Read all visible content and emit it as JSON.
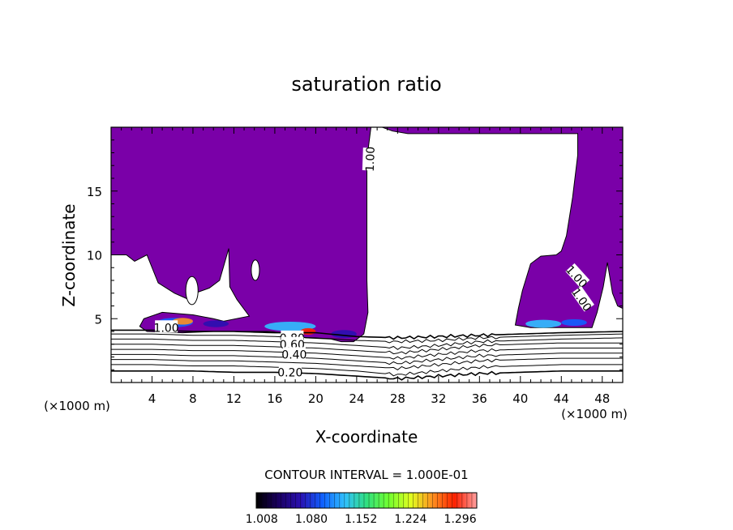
{
  "chart_data": {
    "type": "contour",
    "title": "saturation ratio",
    "xlabel": "X-coordinate",
    "ylabel": "Z-coordinate",
    "x_unit_label": "(×1000 m)",
    "y_unit_label": "(×1000 m)",
    "xlim": [
      0,
      50
    ],
    "ylim": [
      0,
      20
    ],
    "x_ticks": [
      4,
      8,
      12,
      16,
      20,
      24,
      28,
      32,
      36,
      40,
      44,
      48
    ],
    "x_tick_labels": [
      "4",
      "8",
      "12",
      "16",
      "20",
      "24",
      "28",
      "32",
      "36",
      "40",
      "44",
      "48"
    ],
    "y_ticks": [
      5,
      10,
      15
    ],
    "y_tick_labels": [
      "5",
      "10",
      "15"
    ],
    "contour_interval_text": "CONTOUR INTERVAL = 1.000E-01",
    "contour_labels": [
      {
        "text": "1.00",
        "x": 25.3,
        "z": 17.5,
        "angle": -88
      },
      {
        "text": "1.00",
        "x": 45.5,
        "z": 8.3,
        "angle": 48
      },
      {
        "text": "1.00",
        "x": 46.0,
        "z": 6.5,
        "angle": 55
      },
      {
        "text": "1.00",
        "x": 5.4,
        "z": 4.3,
        "angle": 0
      },
      {
        "text": "0.80",
        "x": 17.7,
        "z": 3.5,
        "angle": 0
      },
      {
        "text": "0.60",
        "x": 17.7,
        "z": 3.0,
        "angle": 0
      },
      {
        "text": "0.40",
        "x": 17.9,
        "z": 2.2,
        "angle": 0
      },
      {
        "text": "0.20",
        "x": 17.5,
        "z": 0.8,
        "angle": 0
      }
    ],
    "saturated_regions": [
      {
        "name": "",
        "points": [
          [
            0,
            20
          ],
          [
            26.5,
            20
          ],
          [
            27.5,
            19.7
          ],
          [
            29,
            19.5
          ],
          [
            38,
            19.5
          ],
          [
            45.6,
            19.5
          ],
          [
            45.6,
            17.8
          ],
          [
            45.1,
            14.5
          ],
          [
            44.5,
            11.5
          ],
          [
            44.0,
            10.3
          ],
          [
            43.5,
            10.0
          ],
          [
            42.0,
            9.9
          ],
          [
            41.0,
            9.3
          ],
          [
            40.2,
            7.2
          ],
          [
            39.8,
            5.8
          ],
          [
            39.5,
            4.5
          ],
          [
            41.0,
            4.3
          ],
          [
            44.0,
            4.3
          ],
          [
            47.0,
            4.3
          ],
          [
            47.5,
            5.5
          ],
          [
            48.1,
            7.5
          ],
          [
            48.5,
            9.4
          ],
          [
            49.0,
            7.0
          ],
          [
            49.5,
            6.0
          ],
          [
            50,
            5.8
          ],
          [
            50,
            20
          ]
        ]
      },
      {
        "name": "",
        "points": [
          [
            0,
            20
          ],
          [
            25.4,
            20
          ],
          [
            25.0,
            17.5
          ],
          [
            25.0,
            13.0
          ],
          [
            25.0,
            8.0
          ],
          [
            25.1,
            5.5
          ],
          [
            24.7,
            3.8
          ],
          [
            23.7,
            3.2
          ],
          [
            22.5,
            3.2
          ],
          [
            21.5,
            3.4
          ],
          [
            19.0,
            3.5
          ],
          [
            17.5,
            3.8
          ],
          [
            15.5,
            4.0
          ],
          [
            13.0,
            4.0
          ],
          [
            10.0,
            4.0
          ],
          [
            7.0,
            3.9
          ],
          [
            3.5,
            4.0
          ],
          [
            2.8,
            4.4
          ],
          [
            3.2,
            5.0
          ],
          [
            5.0,
            5.5
          ],
          [
            8.0,
            5.3
          ],
          [
            10.0,
            5.0
          ],
          [
            11.0,
            4.8
          ],
          [
            13.5,
            5.2
          ],
          [
            12.3,
            6.5
          ],
          [
            11.6,
            7.5
          ],
          [
            11.5,
            10.5
          ],
          [
            10.6,
            8.0
          ],
          [
            9.6,
            7.4
          ],
          [
            8.2,
            7.0
          ],
          [
            7.6,
            6.5
          ],
          [
            6.2,
            7.0
          ],
          [
            4.6,
            7.8
          ],
          [
            3.5,
            10.0
          ],
          [
            2.3,
            9.5
          ],
          [
            1.5,
            10.0
          ],
          [
            0,
            10.0
          ]
        ]
      }
    ],
    "white_holes": [
      {
        "cx": 7.9,
        "cz": 7.2,
        "rx": 0.6,
        "rz": 1.1
      },
      {
        "cx": 14.1,
        "cz": 8.8,
        "rx": 0.4,
        "rz": 0.8
      }
    ],
    "filled_cells": [
      {
        "x": 4.5,
        "z": 4.7,
        "w": 3.5,
        "h": 0.6,
        "value": 1.1
      },
      {
        "x": 6.0,
        "z": 4.8,
        "w": 2.0,
        "h": 0.4,
        "value": 1.25
      },
      {
        "x": 9.0,
        "z": 4.6,
        "w": 2.5,
        "h": 0.4,
        "value": 1.05
      },
      {
        "x": 15.0,
        "z": 4.4,
        "w": 5.0,
        "h": 0.6,
        "value": 1.12
      },
      {
        "x": 18.5,
        "z": 4.0,
        "w": 1.5,
        "h": 0.4,
        "value": 1.28
      },
      {
        "x": 21.5,
        "z": 3.8,
        "w": 2.5,
        "h": 0.5,
        "value": 1.05
      },
      {
        "x": 40.5,
        "z": 4.6,
        "w": 3.5,
        "h": 0.5,
        "value": 1.12
      },
      {
        "x": 44.0,
        "z": 4.7,
        "w": 2.5,
        "h": 0.4,
        "value": 1.08
      }
    ],
    "subsaturated_contours": [
      {
        "level": 1.0,
        "z": [
          4.1,
          4.1,
          4.0,
          4.0,
          3.9,
          3.9,
          3.6,
          3.5,
          3.6,
          3.7,
          3.8,
          3.9,
          4.0
        ]
      },
      {
        "level": 0.9,
        "z": [
          3.8,
          3.8,
          3.7,
          3.7,
          3.6,
          3.5,
          3.3,
          3.2,
          3.3,
          3.5,
          3.6,
          3.7,
          3.8
        ]
      },
      {
        "level": 0.8,
        "z": [
          3.4,
          3.4,
          3.3,
          3.3,
          3.2,
          3.1,
          2.9,
          2.7,
          2.9,
          3.2,
          3.3,
          3.4,
          3.5
        ]
      },
      {
        "level": 0.7,
        "z": [
          3.0,
          3.0,
          2.9,
          2.9,
          2.8,
          2.7,
          2.5,
          2.3,
          2.6,
          2.9,
          3.0,
          3.1,
          3.1
        ]
      },
      {
        "level": 0.6,
        "z": [
          2.6,
          2.6,
          2.5,
          2.5,
          2.4,
          2.3,
          2.1,
          1.9,
          2.2,
          2.5,
          2.6,
          2.7,
          2.7
        ]
      },
      {
        "level": 0.5,
        "z": [
          2.2,
          2.2,
          2.1,
          2.1,
          2.0,
          1.9,
          1.7,
          1.5,
          1.8,
          2.1,
          2.2,
          2.3,
          2.3
        ]
      },
      {
        "level": 0.4,
        "z": [
          1.8,
          1.8,
          1.7,
          1.7,
          1.6,
          1.5,
          1.3,
          1.1,
          1.4,
          1.7,
          1.8,
          1.9,
          1.9
        ]
      },
      {
        "level": 0.3,
        "z": [
          1.4,
          1.4,
          1.3,
          1.3,
          1.2,
          1.1,
          0.9,
          0.6,
          0.9,
          1.2,
          1.3,
          1.4,
          1.4
        ]
      },
      {
        "level": 0.2,
        "z": [
          0.9,
          0.9,
          0.9,
          0.8,
          0.8,
          0.7,
          0.5,
          0.3,
          0.5,
          0.7,
          0.8,
          0.9,
          0.9
        ]
      }
    ],
    "contour_x": [
      0,
      4,
      8,
      12,
      16,
      20,
      24,
      28,
      32,
      36,
      40,
      44,
      50
    ],
    "colorbar": {
      "min": 1.0,
      "max": 1.32,
      "tick_values": [
        1.008,
        1.08,
        1.152,
        1.224,
        1.296
      ],
      "tick_labels": [
        "1.008",
        "1.080",
        "1.152",
        "1.224",
        "1.296"
      ],
      "colors": [
        "#000000",
        "#1a0060",
        "#2a10b0",
        "#1060ff",
        "#30c0ff",
        "#30e080",
        "#70ff30",
        "#e0ff20",
        "#ff9020",
        "#ff2000",
        "#ffa0a0"
      ]
    },
    "colors": {
      "saturated_fill": "#7a00a8",
      "background": "#ffffff",
      "axes": "#000000"
    },
    "grid": false
  }
}
